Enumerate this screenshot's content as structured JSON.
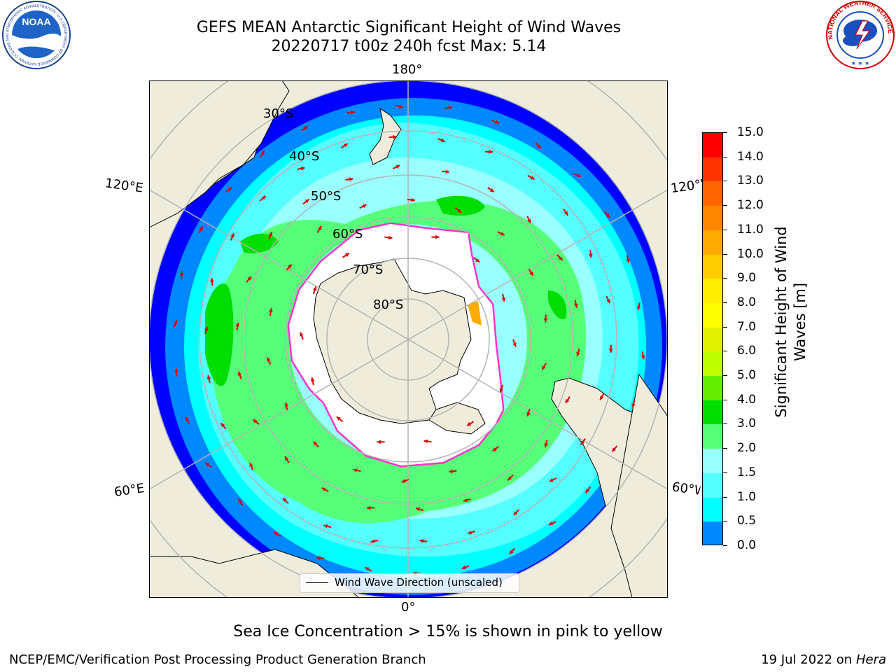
{
  "header": {
    "title_line1": "GEFS MEAN Antarctic Significant Height of Wind Waves",
    "title_line2": "20220717 t00z 240h fcst   Max: 5.14"
  },
  "logos": {
    "left": {
      "text": "NOAA",
      "ring_text": "NATIONAL OCEANIC AND ATMOSPHERIC ADMINISTRATION · U.S. DEPARTMENT OF COMMERCE"
    },
    "right": {
      "ring_text": "NATIONAL WEATHER SERVICE"
    }
  },
  "map": {
    "projection": "south-polar-stereographic",
    "longitude_labels": {
      "top": "180°",
      "upper_left": "120°E",
      "upper_right": "120°W",
      "lower_left": "60°E",
      "lower_right": "60°W",
      "bottom": "0°"
    },
    "latitude_labels": [
      "30°S",
      "40°S",
      "50°S",
      "60°S",
      "70°S",
      "80°S"
    ],
    "legend_text": "Wind Wave Direction (unscaled)",
    "colors": {
      "land": "#efecdc",
      "sea_ice": "#ffffff",
      "ice_edge": "#ff33cc",
      "arrow": "#e00000",
      "graticule": "#b4b4b4"
    }
  },
  "colorbar": {
    "label": "Significant Height of Wind Waves [m]",
    "label_line1": "Significant Height of Wind",
    "label_line2": "Waves [m]",
    "ticks": [
      "15.0",
      "14.0",
      "13.0",
      "12.0",
      "11.0",
      "10.0",
      "9.0",
      "8.0",
      "7.0",
      "6.0",
      "5.0",
      "4.0",
      "3.0",
      "2.0",
      "1.5",
      "1.0",
      "0.5",
      "0.0"
    ],
    "colors_top_to_bottom": [
      "#ff0000",
      "#ff3300",
      "#ff6600",
      "#ff8800",
      "#ffaa00",
      "#ffcc00",
      "#ffee00",
      "#ffff00",
      "#e0f000",
      "#c0ff00",
      "#66ee00",
      "#00dd00",
      "#55ff77",
      "#99ffff",
      "#55ffff",
      "#00ffff",
      "#0088ff",
      "#0000ff"
    ]
  },
  "footer": {
    "note": "Sea Ice Concentration > 15% is shown in pink to yellow",
    "left": "NCEP/EMC/Verification Post Processing Product Generation Branch",
    "right_prefix": "19 Jul 2022 on ",
    "right_italic": "Hera"
  }
}
